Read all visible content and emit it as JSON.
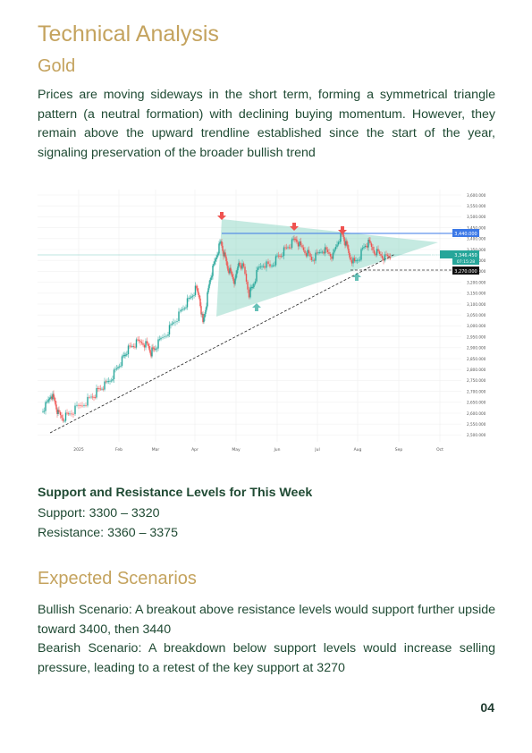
{
  "title": "Technical Analysis",
  "subtitle": "Gold",
  "intro": "Prices are moving sideways in the short term, forming a symmetrical triangle pattern (a neutral formation) with declining buying momentum. However, they remain above the upward trendline established since the start of the year, signaling preservation of the broader bullish trend",
  "chart": {
    "y_ticks": [
      "3,600.000",
      "3,550.000",
      "3,500.000",
      "3,450.000",
      "3,400.000",
      "3,350.000",
      "3,300.000",
      "3,250.000",
      "3,200.000",
      "3,150.000",
      "3,100.000",
      "3,050.000",
      "3,000.000",
      "2,950.000",
      "2,900.000",
      "2,850.000",
      "2,800.000",
      "2,750.000",
      "2,700.000",
      "2,650.000",
      "2,600.000",
      "2,550.000",
      "2,500.000"
    ],
    "x_ticks": [
      "2025",
      "Feb",
      "Mar",
      "Apr",
      "May",
      "Jun",
      "Jul",
      "Aug",
      "Sep",
      "Oct"
    ],
    "price_label_resistance": "3,440.000",
    "price_label_current_symbol": "XAUUSD",
    "price_label_current": "3,346.450",
    "price_label_current_sub": "07:15:28",
    "price_label_support": "3,270.000",
    "colors": {
      "up": "#26a69a",
      "down": "#ef5350",
      "triangle": "#7fd1bd",
      "resistance_line": "#3b78e7"
    }
  },
  "levels": {
    "title": "Support and Resistance Levels for This Week",
    "support": "Support: 3300 – 3320",
    "resistance": "Resistance: 3360 – 3375"
  },
  "scenarios": {
    "title": "Expected Scenarios",
    "bullish": "Bullish Scenario: A breakout above resistance levels would support further upside toward 3400, then 3440",
    "bearish": "Bearish Scenario: A breakdown below support levels would increase selling pressure, leading to a retest of the key support at 3270"
  },
  "page_number": "04"
}
